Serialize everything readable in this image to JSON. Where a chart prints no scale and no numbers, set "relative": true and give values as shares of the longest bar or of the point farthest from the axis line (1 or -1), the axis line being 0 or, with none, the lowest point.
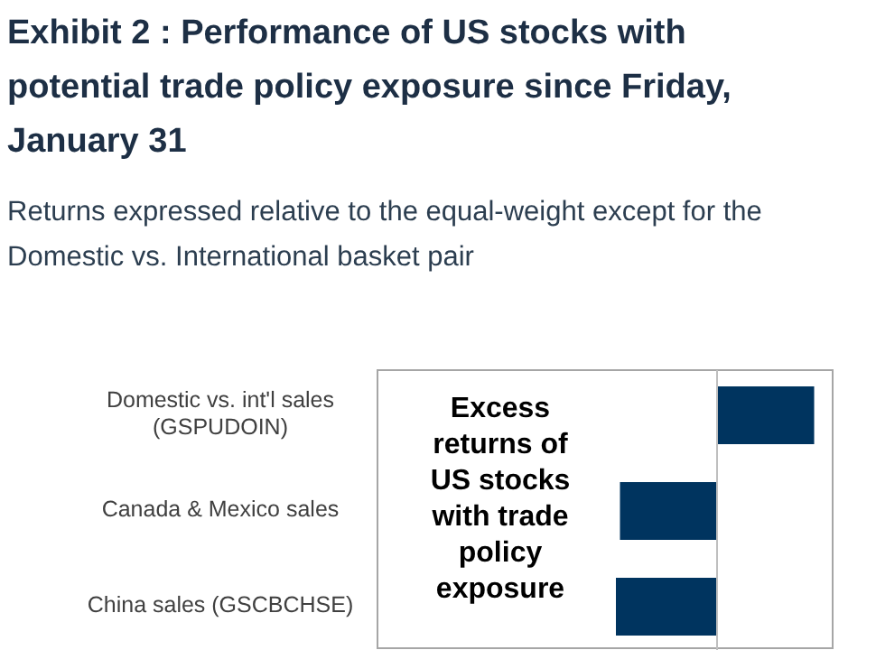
{
  "chart_data": {
    "type": "bar",
    "orientation": "horizontal",
    "relative": true,
    "title": "Exhibit 2 : Performance of US stocks with potential trade policy exposure since Friday, January 31",
    "subtitle": "Returns expressed relative to the equal-weight except for the Domestic vs. International basket pair",
    "categories": [
      "Domestic vs. int'l sales (GSPUDOIN)",
      "Canada & Mexico sales",
      "China sales (GSCBCHSE)"
    ],
    "values": [
      0.96,
      -0.96,
      -1
    ],
    "color": "#00345f",
    "annotations": [
      "Excess returns of US stocks with trade policy exposure"
    ]
  }
}
